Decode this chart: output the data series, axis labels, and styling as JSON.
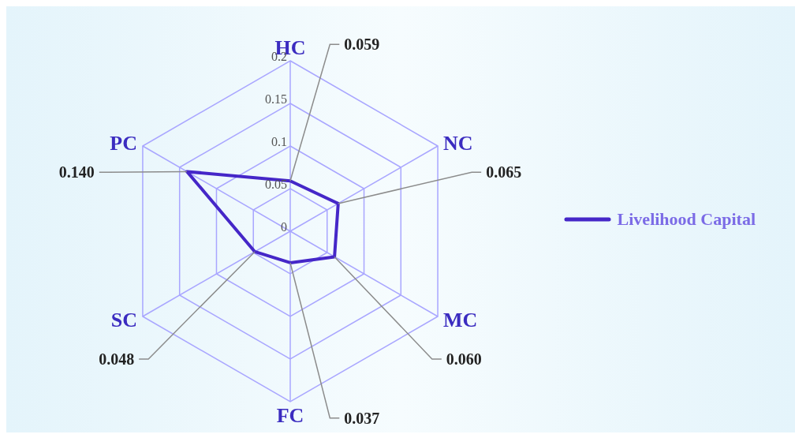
{
  "chart_data": {
    "type": "radar",
    "categories": [
      "HC",
      "NC",
      "MC",
      "FC",
      "SC",
      "PC"
    ],
    "series": [
      {
        "name": "Livelihood Capital",
        "color": "#4527c8",
        "values": [
          0.059,
          0.065,
          0.06,
          0.037,
          0.048,
          0.14
        ],
        "value_labels": [
          "0.059",
          "0.065",
          "0.060",
          "0.037",
          "0.048",
          "0.140"
        ]
      }
    ],
    "ylim": [
      0,
      0.2
    ],
    "yticks": [
      0,
      0.05,
      0.1,
      0.15,
      0.2
    ],
    "grid": true,
    "legend": "right",
    "marker": "none",
    "line_style": "solid"
  }
}
